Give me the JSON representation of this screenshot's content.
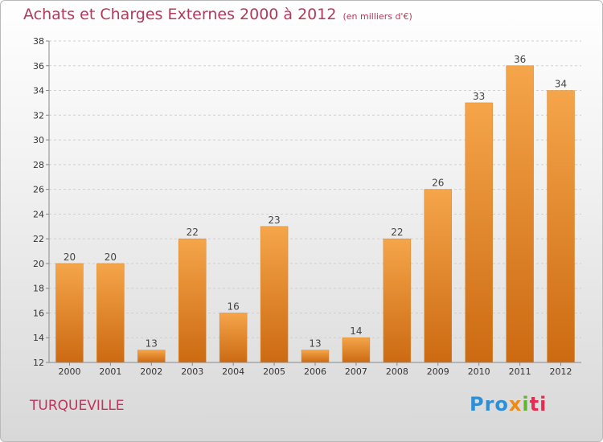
{
  "title": "Achats et Charges Externes 2000 à 2012",
  "subtitle": "(en milliers d'€)",
  "commune": "TURQUEVILLE",
  "logo_text": "Proxiti",
  "colors": {
    "bar_light": "#f5a54a",
    "bar_dark": "#cc6a12",
    "title": "#b13a5a"
  },
  "chart_data": {
    "type": "bar",
    "categories": [
      "2000",
      "2001",
      "2002",
      "2003",
      "2004",
      "2005",
      "2006",
      "2007",
      "2008",
      "2009",
      "2010",
      "2011",
      "2012"
    ],
    "values": [
      20,
      20,
      13,
      22,
      16,
      23,
      13,
      14,
      22,
      26,
      33,
      36,
      34
    ],
    "ylim": [
      12,
      38
    ],
    "yticks": [
      12,
      14,
      16,
      18,
      20,
      22,
      24,
      26,
      28,
      30,
      32,
      34,
      36,
      38
    ],
    "grid": true,
    "xlabel": "",
    "ylabel": ""
  }
}
